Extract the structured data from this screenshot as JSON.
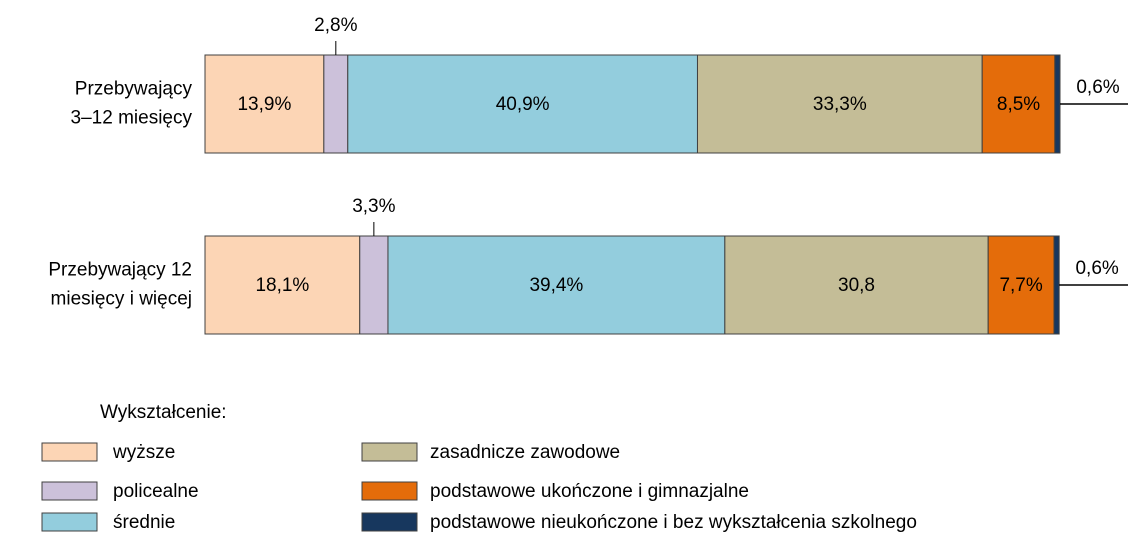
{
  "chart_data": {
    "type": "stacked_bar_horizontal",
    "categories": [
      [
        "Przebywający",
        "3–12 miesięcy"
      ],
      [
        "Przebywający 12",
        "miesięcy i więcej"
      ]
    ],
    "xlim": [
      0,
      100
    ],
    "legend_title": "Wykształcenie:",
    "series": [
      {
        "name": "wyższe",
        "color": "#fcd5b5",
        "values": [
          13.9,
          18.1
        ],
        "value_labels": [
          "13,9%",
          "18,1%"
        ]
      },
      {
        "name": "policealne",
        "color": "#ccc1da",
        "values": [
          2.8,
          3.3
        ],
        "value_labels": [
          "2,8%",
          "3,3%"
        ]
      },
      {
        "name": "średnie",
        "color": "#93cddd",
        "values": [
          40.9,
          39.4
        ],
        "value_labels": [
          "40,9%",
          "39,4%"
        ]
      },
      {
        "name": "zasadnicze zawodowe",
        "color": "#c4bd97",
        "values": [
          33.3,
          30.8
        ],
        "value_labels": [
          "33,3%",
          "30,8"
        ]
      },
      {
        "name": "podstawowe ukończone i gimnazjalne",
        "color": "#e46c0a",
        "values": [
          8.5,
          7.7
        ],
        "value_labels": [
          "8,5%",
          "7,7%"
        ]
      },
      {
        "name": "podstawowe nieukończone i bez wykształcenia szkolnego",
        "color": "#17375e",
        "values": [
          0.6,
          0.6
        ],
        "value_labels": [
          "0,6%",
          "0,6%"
        ]
      }
    ]
  }
}
